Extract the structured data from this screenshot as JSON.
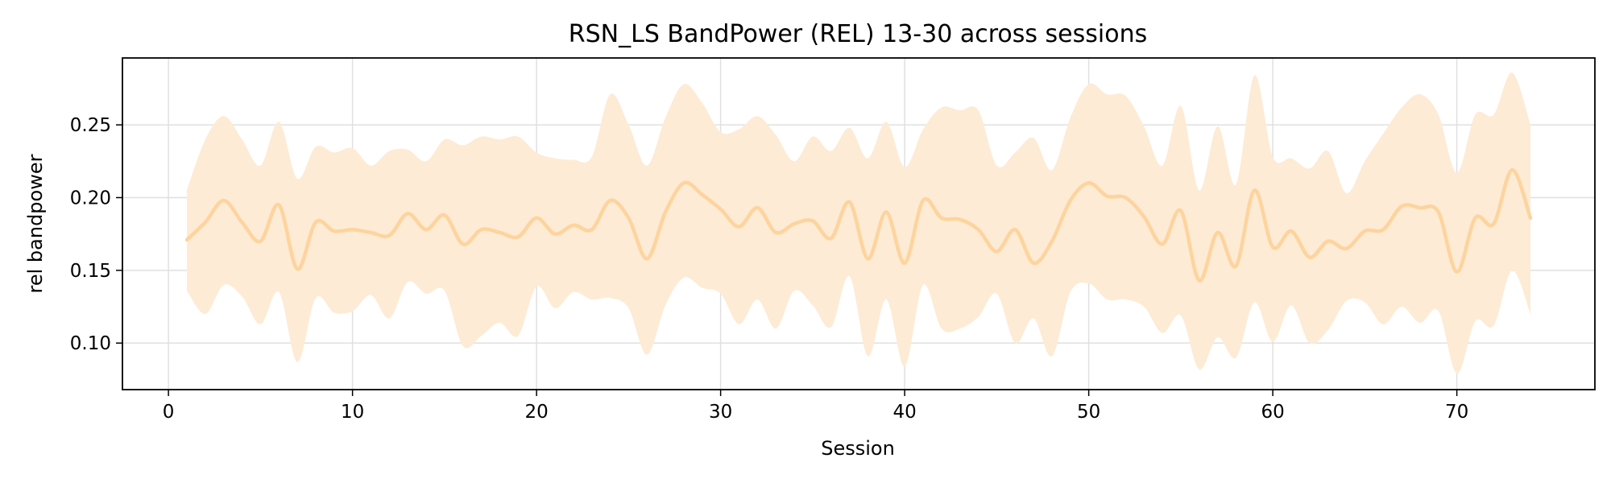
{
  "chart_data": {
    "type": "line",
    "title": "RSN_LS BandPower (REL) 13-30 across sessions",
    "xlabel": "Session",
    "ylabel": "rel bandpower",
    "xlim": [
      -2.5,
      77.5
    ],
    "ylim": [
      0.068,
      0.296
    ],
    "xticks": [
      0,
      10,
      20,
      30,
      40,
      50,
      60,
      70
    ],
    "yticks": [
      0.1,
      0.15,
      0.2,
      0.25
    ],
    "grid": true,
    "colors": {
      "line": "#fdd49e",
      "band": "#fdebd5"
    },
    "series": [
      {
        "x": [
          1,
          2,
          3,
          4,
          5,
          6,
          7,
          8,
          9,
          10,
          11,
          12,
          13,
          14,
          15,
          16,
          17,
          18,
          19,
          20,
          21,
          22,
          23,
          24,
          25,
          26,
          27,
          28,
          29,
          30,
          31,
          32,
          33,
          34,
          35,
          36,
          37,
          38,
          39,
          40,
          41,
          42,
          43,
          44,
          45,
          46,
          47,
          48,
          49,
          50,
          51,
          52,
          53,
          54,
          55,
          56,
          57,
          58,
          59,
          60,
          61,
          62,
          63,
          64,
          65,
          66,
          67,
          68,
          69,
          70,
          71,
          72,
          73,
          74
        ],
        "mean": [
          0.171,
          0.183,
          0.198,
          0.183,
          0.17,
          0.195,
          0.151,
          0.183,
          0.177,
          0.178,
          0.176,
          0.174,
          0.189,
          0.178,
          0.188,
          0.168,
          0.178,
          0.176,
          0.173,
          0.186,
          0.175,
          0.181,
          0.178,
          0.198,
          0.186,
          0.158,
          0.19,
          0.21,
          0.202,
          0.192,
          0.18,
          0.193,
          0.176,
          0.182,
          0.184,
          0.172,
          0.197,
          0.158,
          0.19,
          0.155,
          0.198,
          0.186,
          0.185,
          0.178,
          0.163,
          0.178,
          0.155,
          0.17,
          0.198,
          0.21,
          0.201,
          0.2,
          0.187,
          0.168,
          0.191,
          0.143,
          0.176,
          0.153,
          0.205,
          0.166,
          0.177,
          0.159,
          0.17,
          0.165,
          0.177,
          0.178,
          0.194,
          0.193,
          0.19,
          0.149,
          0.186,
          0.182,
          0.219,
          0.186
        ],
        "upper": [
          0.205,
          0.24,
          0.256,
          0.24,
          0.222,
          0.252,
          0.213,
          0.235,
          0.231,
          0.234,
          0.222,
          0.232,
          0.233,
          0.225,
          0.24,
          0.236,
          0.242,
          0.24,
          0.242,
          0.231,
          0.227,
          0.226,
          0.228,
          0.271,
          0.25,
          0.222,
          0.255,
          0.278,
          0.265,
          0.245,
          0.247,
          0.256,
          0.243,
          0.225,
          0.242,
          0.232,
          0.248,
          0.227,
          0.252,
          0.221,
          0.247,
          0.262,
          0.26,
          0.26,
          0.222,
          0.231,
          0.241,
          0.219,
          0.255,
          0.278,
          0.271,
          0.27,
          0.249,
          0.222,
          0.263,
          0.205,
          0.249,
          0.209,
          0.284,
          0.228,
          0.227,
          0.22,
          0.232,
          0.203,
          0.225,
          0.244,
          0.262,
          0.271,
          0.257,
          0.217,
          0.257,
          0.257,
          0.286,
          0.25
        ],
        "lower": [
          0.136,
          0.12,
          0.14,
          0.132,
          0.113,
          0.135,
          0.087,
          0.131,
          0.121,
          0.122,
          0.133,
          0.117,
          0.142,
          0.134,
          0.136,
          0.098,
          0.105,
          0.114,
          0.105,
          0.139,
          0.124,
          0.135,
          0.13,
          0.131,
          0.124,
          0.092,
          0.126,
          0.145,
          0.138,
          0.134,
          0.113,
          0.13,
          0.11,
          0.136,
          0.126,
          0.111,
          0.146,
          0.091,
          0.13,
          0.084,
          0.14,
          0.11,
          0.11,
          0.118,
          0.134,
          0.1,
          0.117,
          0.091,
          0.135,
          0.141,
          0.13,
          0.13,
          0.125,
          0.107,
          0.119,
          0.082,
          0.104,
          0.09,
          0.128,
          0.101,
          0.126,
          0.1,
          0.109,
          0.129,
          0.128,
          0.113,
          0.125,
          0.114,
          0.122,
          0.079,
          0.115,
          0.112,
          0.15,
          0.12
        ]
      }
    ]
  }
}
